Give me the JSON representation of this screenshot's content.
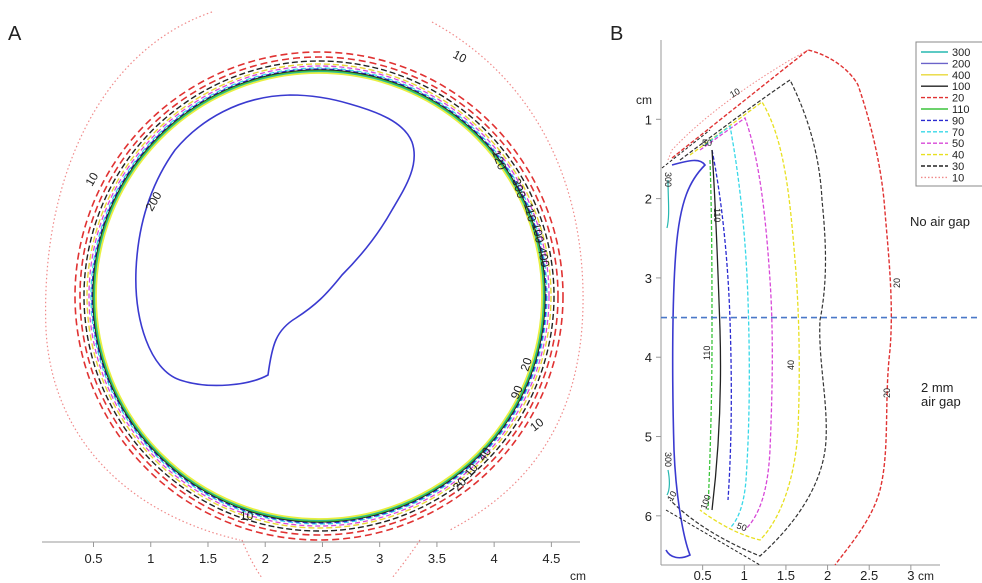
{
  "chart_data": [
    {
      "type": "contour",
      "panel": "A",
      "xlabel": "cm",
      "ticks": [
        "0.5",
        "1",
        "1.5",
        "2",
        "2.5",
        "3",
        "3.5",
        "4",
        "4.5"
      ],
      "tick_values": [
        0.5,
        1,
        1.5,
        2,
        2.5,
        3,
        3.5,
        4,
        4.5
      ],
      "xlim": [
        0.05,
        4.75
      ],
      "labels": [
        "10",
        "10",
        "10",
        "10",
        "200",
        "120",
        "400",
        "300",
        "110",
        "100",
        "20",
        "90",
        "40",
        "10",
        "20"
      ]
    },
    {
      "type": "contour",
      "panel": "B",
      "xlabel": "cm",
      "ylabel": "cm",
      "xticks": [
        "0.5",
        "1",
        "1.5",
        "2",
        "2.5",
        "3"
      ],
      "x_values": [
        0.5,
        1,
        1.5,
        2,
        2.5,
        3
      ],
      "yticks": [
        "1",
        "2",
        "3",
        "4",
        "5",
        "6"
      ],
      "y_values": [
        1,
        2,
        3,
        4,
        5,
        6
      ],
      "xlim": [
        0,
        3.35
      ],
      "ylim": [
        0,
        6.62
      ],
      "legend": [
        "300",
        "200",
        "400",
        "100",
        "20",
        "110",
        "90",
        "70",
        "50",
        "40",
        "30",
        "10"
      ],
      "colors": {
        "300": "#26b8b0",
        "200": "#6b63c9",
        "400": "#e8d83a",
        "100": "#222222",
        "20": "#e03232",
        "110": "#3cc43c",
        "90": "#2a2ad0",
        "70": "#38d8e8",
        "50": "#d848d8",
        "40": "#e8e020",
        "30": "#222222",
        "10": "#f08a8a"
      },
      "contour_labels": [
        "10",
        "50",
        "110",
        "300",
        "110",
        "40",
        "20",
        "20",
        "300",
        "100",
        "10",
        "50"
      ],
      "annotations": [
        "No air gap",
        "2 mm air gap"
      ],
      "divider_y": 3.5
    }
  ]
}
